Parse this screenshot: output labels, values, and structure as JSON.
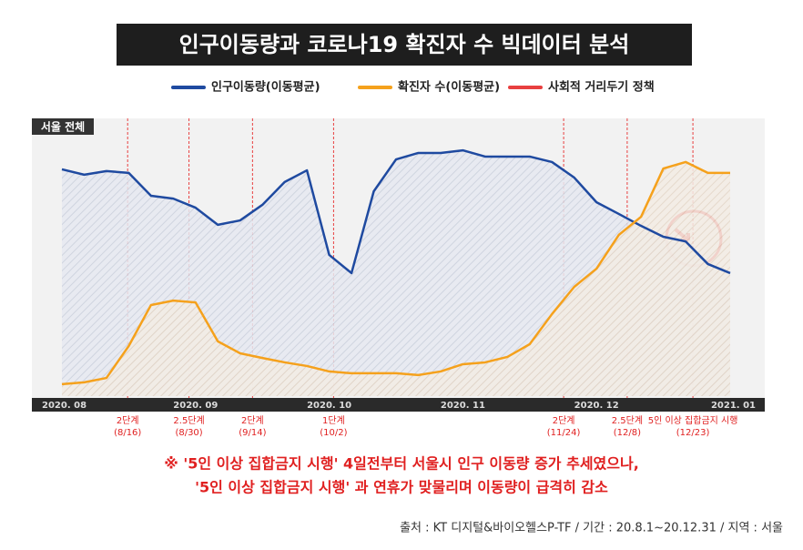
{
  "chart_data": {
    "type": "line",
    "title": "인구이동량과 코로나19 확진자 수 빅데이터 분석",
    "panel_label": "서울 전체",
    "categories": [
      "2020. 08",
      null,
      null,
      null,
      null,
      null,
      "2020. 09",
      null,
      null,
      null,
      null,
      null,
      "2020. 10",
      null,
      null,
      null,
      null,
      null,
      "2020. 11",
      null,
      null,
      null,
      null,
      null,
      "2020. 12",
      null,
      null,
      null,
      null,
      null,
      "2021. 01"
    ],
    "ylim": [
      0,
      100
    ],
    "series": [
      {
        "name": "인구이동량(이동평균)",
        "color": "#1f4aa0",
        "values": [
          87.4,
          85.3,
          86.7,
          86.0,
          77.2,
          76.1,
          72.6,
          66.0,
          67.7,
          73.7,
          82.5,
          87.0,
          54.4,
          47.4,
          78.9,
          91.2,
          93.7,
          93.7,
          94.7,
          92.3,
          92.3,
          92.3,
          90.2,
          84.2,
          74.7,
          70.2,
          65.6,
          61.4,
          59.6,
          50.9,
          47.4
        ]
      },
      {
        "name": "확진자 수(이동평균)",
        "color": "#f5a11c",
        "values": [
          4.6,
          5.3,
          7.0,
          19.3,
          35.1,
          36.8,
          36.1,
          21.1,
          16.5,
          14.7,
          13.0,
          11.6,
          9.5,
          8.8,
          8.8,
          8.8,
          8.1,
          9.5,
          12.3,
          13.0,
          15.1,
          20.0,
          31.6,
          42.1,
          49.1,
          62.1,
          69.1,
          87.7,
          90.2,
          86.0,
          86.0
        ]
      }
    ],
    "policy_legend": {
      "name": "사회적 거리두기 정책",
      "color": "#e84040"
    },
    "events": [
      {
        "label": "2단계",
        "date": "(8/16)"
      },
      {
        "label": "2.5단계",
        "date": "(8/30)"
      },
      {
        "label": "2단계",
        "date": "(9/14)"
      },
      {
        "label": "1단계",
        "date": "(10/2)"
      },
      {
        "label": "2단계",
        "date": "(11/24)"
      },
      {
        "label": "2.5단계",
        "date": "(12/8)"
      },
      {
        "label": "5인 이상 집합금지 시행",
        "date": "(12/23)"
      }
    ],
    "annotations": [
      "※ '5인 이상 집합금지 시행' 4일전부터 서울시 인구 이동량 증가 추세였으나,",
      "'5인 이상 집합금지 시행' 과 연휴가 맞물리며 이동량이 급격히 감소"
    ],
    "source": "출처 : KT 디지털&바이오헬스P-TF  /  기간 : 20.8.1~20.12.31  /  지역 : 서울"
  }
}
